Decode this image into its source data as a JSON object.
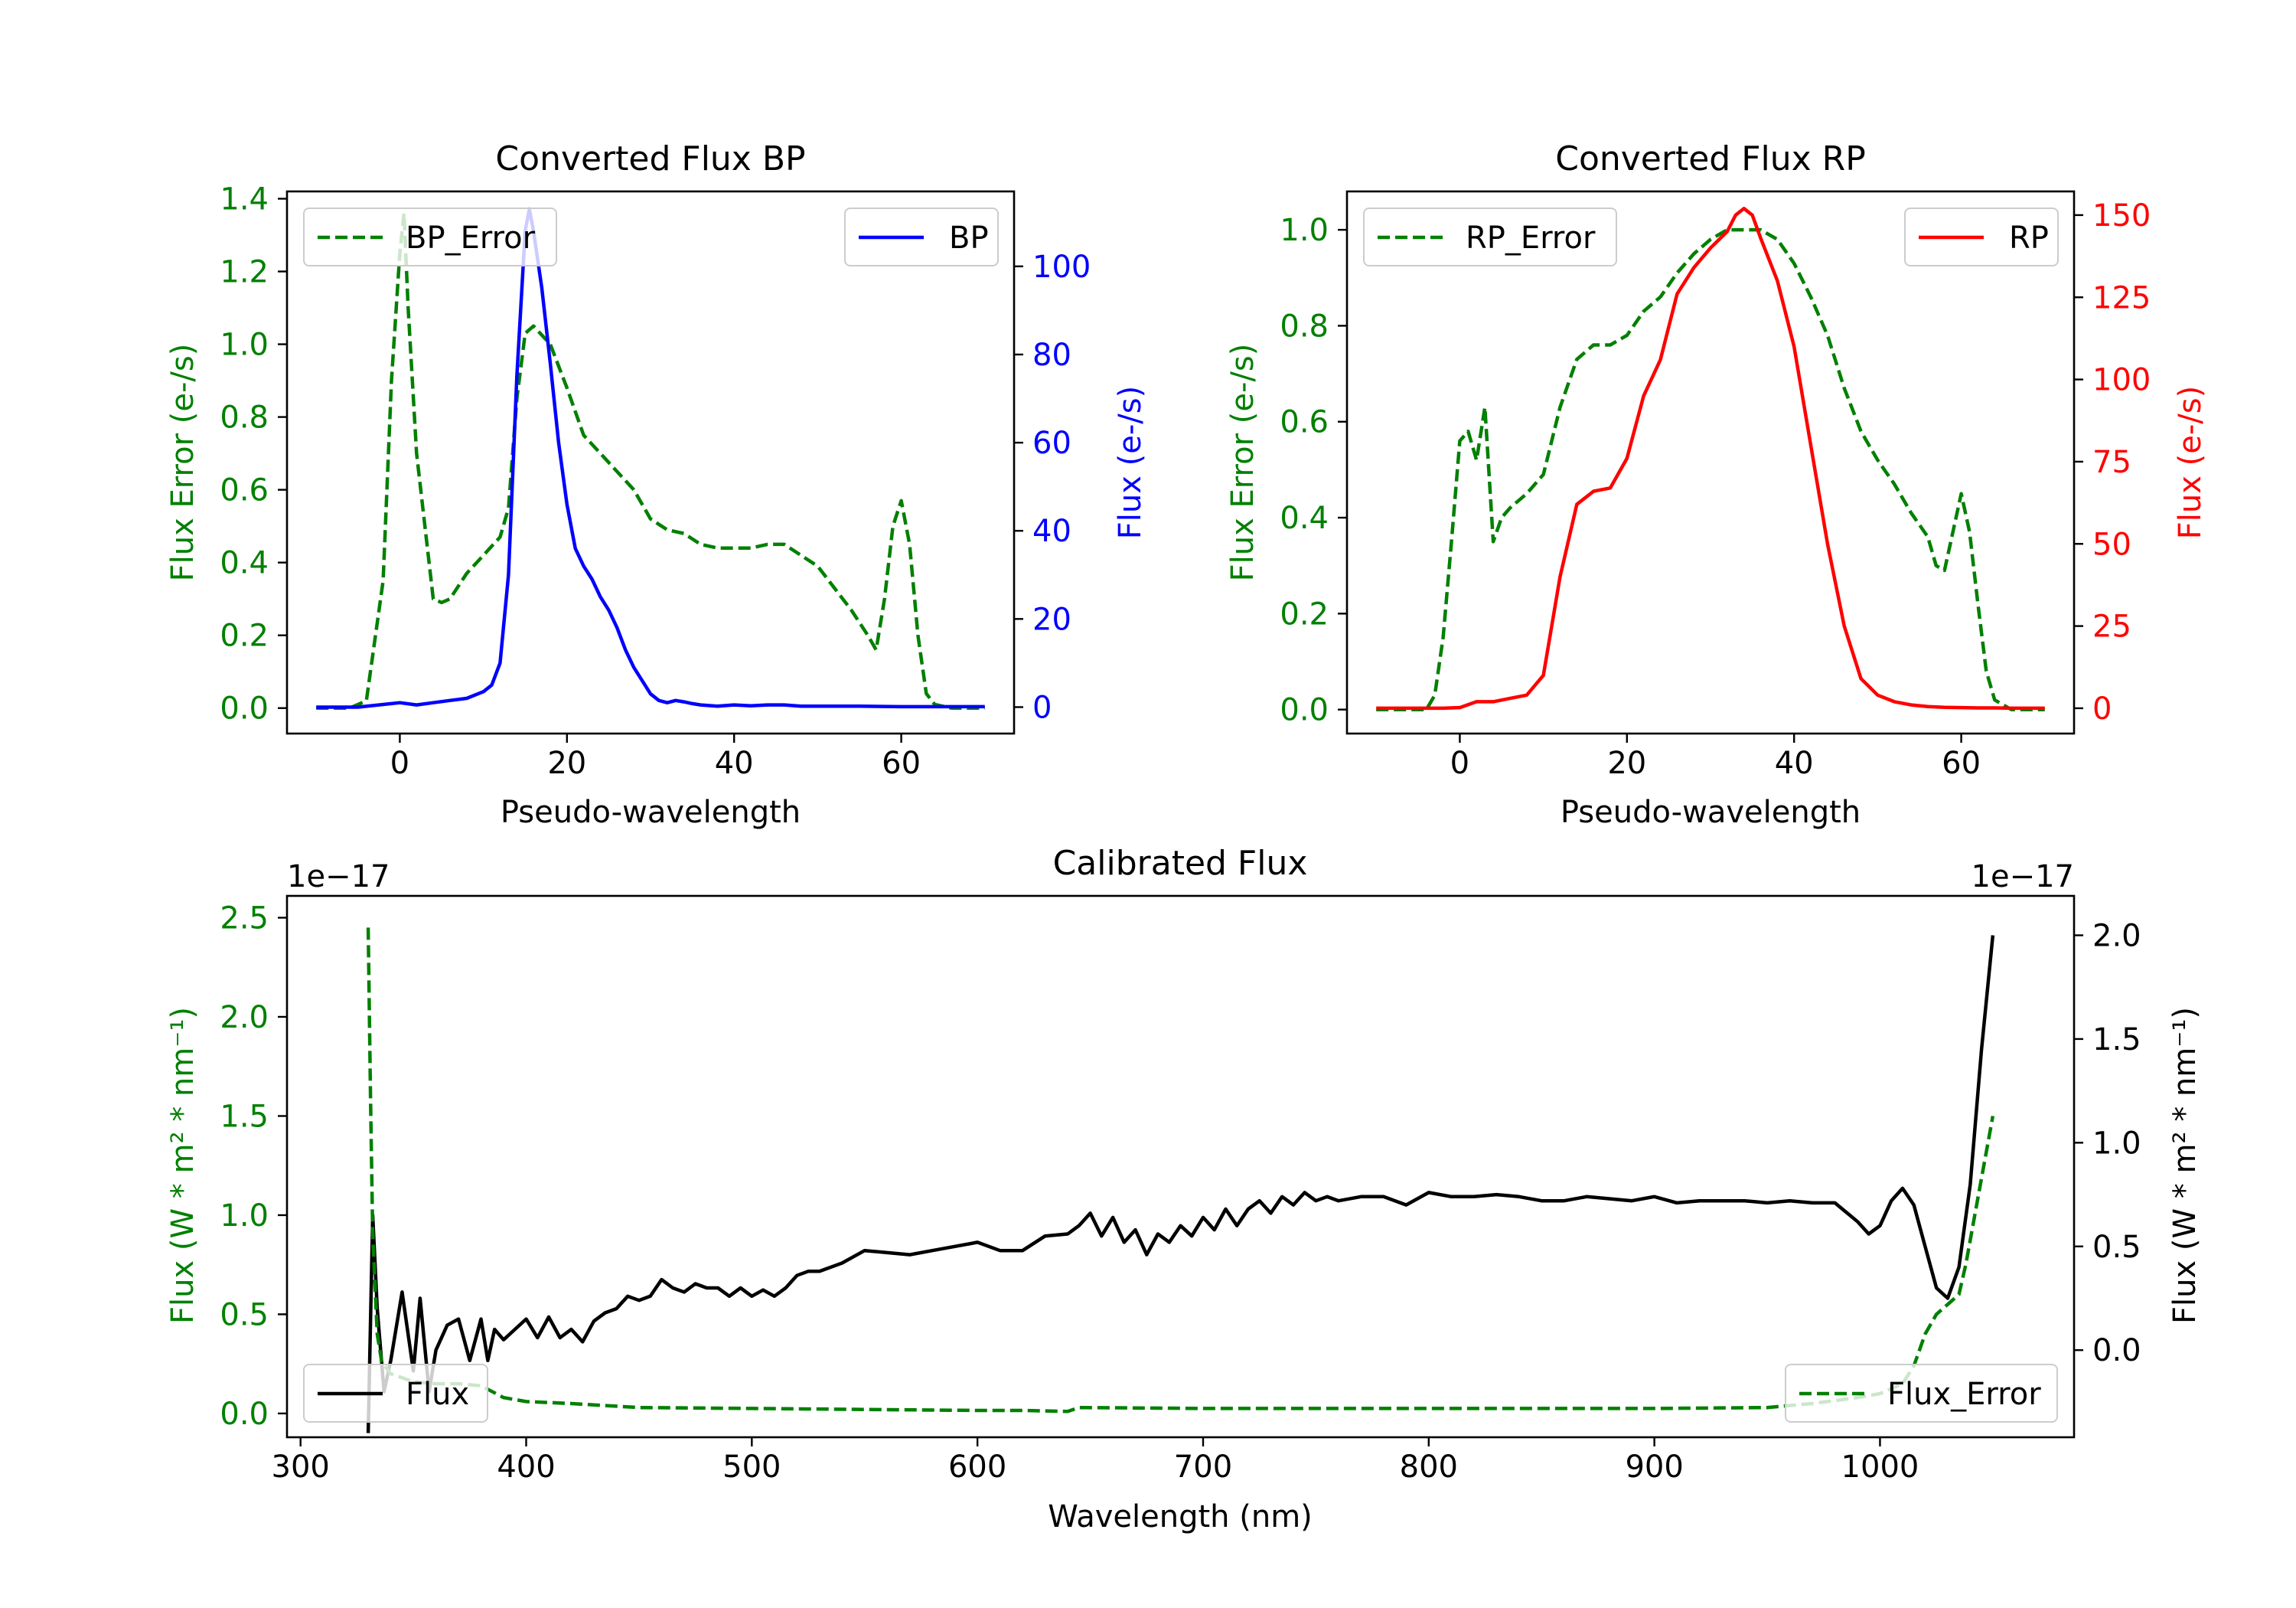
{
  "colors": {
    "green": "#008000",
    "blue": "#0000ff",
    "red": "#ff0000",
    "black": "#000000"
  },
  "chart_data": [
    {
      "type": "line",
      "title": "Converted Flux BP",
      "xlabel": "Pseudo-wavelength",
      "ylabel": "Flux Error (e-/s)",
      "y2label": "Flux (e-/s)",
      "xlim": [
        -13.5,
        73.5
      ],
      "ylim": [
        -0.07,
        1.42
      ],
      "y2lim": [
        -6,
        117
      ],
      "xticks": [
        0,
        20,
        40,
        60
      ],
      "xtick_labels": [
        "0",
        "20",
        "40",
        "60"
      ],
      "yticks": [
        0,
        0.2,
        0.4,
        0.6,
        0.8,
        1.0,
        1.2,
        1.4
      ],
      "ytick_labels": [
        "0.0",
        "0.2",
        "0.4",
        "0.6",
        "0.8",
        "1.0",
        "1.2",
        "1.4"
      ],
      "y2ticks": [
        0,
        20,
        40,
        60,
        80,
        100
      ],
      "y2tick_labels": [
        "0",
        "20",
        "40",
        "60",
        "80",
        "100"
      ],
      "series": [
        {
          "name": "BP_Error",
          "axis": "left",
          "style": "dashed",
          "color": "green",
          "legend": "upper left",
          "x": [
            -10,
            -6,
            -4,
            -2,
            -1,
            0,
            0.5,
            1,
            2,
            3,
            4,
            5,
            6,
            8,
            10,
            12,
            13,
            14,
            15,
            16,
            18,
            20,
            22,
            24,
            26,
            28,
            30,
            32,
            34,
            36,
            38,
            40,
            42,
            44,
            46,
            48,
            50,
            52,
            54,
            56,
            57,
            58,
            59,
            60,
            61,
            62,
            63,
            64,
            66,
            70
          ],
          "y": [
            0,
            0,
            0.02,
            0.35,
            0.9,
            1.25,
            1.36,
            1.1,
            0.7,
            0.5,
            0.3,
            0.29,
            0.3,
            0.37,
            0.42,
            0.47,
            0.55,
            0.85,
            1.03,
            1.05,
            1.0,
            0.88,
            0.75,
            0.7,
            0.65,
            0.6,
            0.52,
            0.49,
            0.48,
            0.45,
            0.44,
            0.44,
            0.44,
            0.45,
            0.45,
            0.42,
            0.39,
            0.33,
            0.27,
            0.2,
            0.16,
            0.3,
            0.5,
            0.57,
            0.45,
            0.2,
            0.04,
            0.01,
            0,
            0
          ]
        },
        {
          "name": "BP",
          "axis": "right",
          "style": "solid",
          "color": "blue",
          "legend": "upper right",
          "x": [
            -10,
            -5,
            0,
            2,
            4,
            6,
            8,
            10,
            11,
            12,
            13,
            14,
            15,
            15.5,
            16,
            17,
            18,
            19,
            20,
            21,
            22,
            23,
            24,
            25,
            26,
            27,
            28,
            29,
            30,
            31,
            32,
            33,
            34,
            35,
            36,
            38,
            40,
            42,
            44,
            46,
            48,
            50,
            55,
            60,
            65,
            70
          ],
          "y": [
            0,
            0,
            1,
            0.5,
            1,
            1.5,
            2,
            3.5,
            5,
            10,
            30,
            75,
            108,
            113,
            108,
            95,
            78,
            60,
            46,
            36,
            32,
            29,
            25,
            22,
            18,
            13,
            9,
            6,
            3,
            1.5,
            1,
            1.5,
            1.2,
            0.8,
            0.5,
            0.2,
            0.5,
            0.3,
            0.5,
            0.5,
            0.2,
            0.2,
            0.2,
            0.1,
            0.1,
            0.1
          ]
        }
      ]
    },
    {
      "type": "line",
      "title": "Converted Flux RP",
      "xlabel": "Pseudo-wavelength",
      "ylabel": "Flux Error (e-/s)",
      "y2label": "Flux (e-/s)",
      "xlim": [
        -13.5,
        73.5
      ],
      "ylim": [
        -0.05,
        1.08
      ],
      "y2lim": [
        -7.7,
        157.2
      ],
      "xticks": [
        0,
        20,
        40,
        60
      ],
      "xtick_labels": [
        "0",
        "20",
        "40",
        "60"
      ],
      "yticks": [
        0,
        0.2,
        0.4,
        0.6,
        0.8,
        1.0
      ],
      "ytick_labels": [
        "0.0",
        "0.2",
        "0.4",
        "0.6",
        "0.8",
        "1.0"
      ],
      "y2ticks": [
        0,
        25,
        50,
        75,
        100,
        125,
        150
      ],
      "y2tick_labels": [
        "0",
        "25",
        "50",
        "75",
        "100",
        "125",
        "150"
      ],
      "series": [
        {
          "name": "RP_Error",
          "axis": "left",
          "style": "dashed",
          "color": "green",
          "legend": "upper left",
          "x": [
            -10,
            -4,
            -3,
            -2,
            -1,
            0,
            1,
            2,
            3,
            4,
            5,
            6,
            8,
            10,
            12,
            14,
            16,
            18,
            20,
            22,
            24,
            26,
            28,
            30,
            32,
            34,
            36,
            38,
            40,
            42,
            44,
            46,
            48,
            50,
            52,
            54,
            56,
            57,
            58,
            59,
            60,
            61,
            62,
            63,
            64,
            66,
            70
          ],
          "y": [
            0,
            0,
            0.03,
            0.15,
            0.35,
            0.56,
            0.58,
            0.52,
            0.63,
            0.35,
            0.4,
            0.42,
            0.45,
            0.49,
            0.63,
            0.73,
            0.76,
            0.76,
            0.78,
            0.83,
            0.86,
            0.91,
            0.95,
            0.98,
            1.0,
            1.0,
            1.0,
            0.98,
            0.93,
            0.86,
            0.78,
            0.67,
            0.58,
            0.52,
            0.47,
            0.41,
            0.36,
            0.3,
            0.29,
            0.37,
            0.45,
            0.37,
            0.22,
            0.08,
            0.02,
            0,
            0
          ]
        },
        {
          "name": "RP",
          "axis": "right",
          "style": "solid",
          "color": "red",
          "legend": "upper right",
          "x": [
            -10,
            -4,
            -2,
            0,
            2,
            4,
            6,
            8,
            10,
            12,
            14,
            16,
            18,
            20,
            22,
            24,
            26,
            28,
            30,
            32,
            33,
            34,
            35,
            36,
            38,
            40,
            42,
            44,
            46,
            48,
            50,
            52,
            54,
            56,
            58,
            60,
            62,
            64,
            66,
            70
          ],
          "y": [
            0,
            0,
            0,
            0.2,
            2,
            2,
            3,
            4,
            10,
            40,
            62,
            66,
            67,
            76,
            95,
            106,
            126,
            134,
            140,
            145,
            150,
            152,
            150,
            143,
            130,
            110,
            80,
            50,
            25,
            9,
            4,
            2,
            1,
            0.5,
            0.3,
            0.2,
            0.1,
            0.1,
            0,
            0
          ]
        }
      ]
    },
    {
      "type": "line",
      "title": "Calibrated Flux",
      "xlabel": "Wavelength (nm)",
      "ylabel": "Flux (W * m² * nm⁻¹)",
      "y2label": "Flux (W * m² * nm⁻¹)",
      "offset_left": "1e−17",
      "offset_right": "1e−17",
      "xlim": [
        294,
        1086
      ],
      "ylim": [
        -0.12,
        2.61
      ],
      "y2lim": [
        -0.42,
        2.19
      ],
      "xticks": [
        300,
        400,
        500,
        600,
        700,
        800,
        900,
        1000
      ],
      "xtick_labels": [
        "300",
        "400",
        "500",
        "600",
        "700",
        "800",
        "900",
        "1000"
      ],
      "yticks": [
        0,
        0.5,
        1.0,
        1.5,
        2.0,
        2.5
      ],
      "ytick_labels": [
        "0.0",
        "0.5",
        "1.0",
        "1.5",
        "2.0",
        "2.5"
      ],
      "y2ticks": [
        0,
        0.5,
        1.0,
        1.5,
        2.0
      ],
      "y2tick_labels": [
        "0.0",
        "0.5",
        "1.0",
        "1.5",
        "2.0"
      ],
      "series": [
        {
          "name": "Flux",
          "axis": "right",
          "style": "solid",
          "color": "black",
          "legend": "lower left",
          "x": [
            330,
            332,
            334,
            337,
            340,
            345,
            350,
            353,
            357,
            360,
            365,
            370,
            375,
            380,
            383,
            386,
            390,
            395,
            400,
            405,
            410,
            415,
            420,
            425,
            430,
            435,
            440,
            445,
            450,
            455,
            460,
            465,
            470,
            475,
            480,
            485,
            490,
            495,
            500,
            505,
            510,
            515,
            520,
            525,
            530,
            540,
            550,
            560,
            570,
            580,
            590,
            600,
            610,
            620,
            630,
            640,
            645,
            650,
            655,
            660,
            665,
            670,
            675,
            680,
            685,
            690,
            695,
            700,
            705,
            710,
            715,
            720,
            725,
            730,
            735,
            740,
            745,
            750,
            755,
            760,
            770,
            780,
            790,
            800,
            810,
            820,
            830,
            840,
            850,
            860,
            870,
            880,
            890,
            900,
            910,
            920,
            930,
            940,
            950,
            960,
            970,
            980,
            990,
            995,
            1000,
            1005,
            1010,
            1015,
            1020,
            1025,
            1030,
            1035,
            1040,
            1045,
            1050
          ],
          "y": [
            -0.4,
            0.65,
            0.2,
            -0.2,
            -0.05,
            0.28,
            -0.1,
            0.25,
            -0.2,
            0.0,
            0.12,
            0.15,
            -0.05,
            0.15,
            -0.05,
            0.1,
            0.05,
            0.1,
            0.15,
            0.06,
            0.16,
            0.06,
            0.1,
            0.04,
            0.14,
            0.18,
            0.2,
            0.26,
            0.24,
            0.26,
            0.34,
            0.3,
            0.28,
            0.32,
            0.3,
            0.3,
            0.26,
            0.3,
            0.26,
            0.29,
            0.26,
            0.3,
            0.36,
            0.38,
            0.38,
            0.42,
            0.48,
            0.47,
            0.46,
            0.48,
            0.5,
            0.52,
            0.48,
            0.48,
            0.55,
            0.56,
            0.6,
            0.66,
            0.55,
            0.64,
            0.52,
            0.58,
            0.46,
            0.56,
            0.52,
            0.6,
            0.55,
            0.64,
            0.58,
            0.68,
            0.6,
            0.68,
            0.72,
            0.66,
            0.74,
            0.7,
            0.76,
            0.72,
            0.74,
            0.72,
            0.74,
            0.74,
            0.7,
            0.76,
            0.74,
            0.74,
            0.75,
            0.74,
            0.72,
            0.72,
            0.74,
            0.73,
            0.72,
            0.74,
            0.71,
            0.72,
            0.72,
            0.72,
            0.71,
            0.72,
            0.71,
            0.71,
            0.62,
            0.56,
            0.6,
            0.72,
            0.78,
            0.7,
            0.5,
            0.3,
            0.25,
            0.4,
            0.8,
            1.45,
            2.0
          ]
        },
        {
          "name": "Flux_Error",
          "axis": "left",
          "style": "dashed",
          "color": "green",
          "legend": "lower right",
          "x": [
            330,
            331,
            332,
            334,
            336,
            340,
            350,
            360,
            370,
            380,
            390,
            400,
            420,
            450,
            500,
            550,
            600,
            620,
            640,
            645,
            700,
            800,
            900,
            950,
            970,
            990,
            1000,
            1010,
            1015,
            1020,
            1025,
            1030,
            1035,
            1038,
            1042,
            1046,
            1050
          ],
          "y": [
            2.45,
            1.6,
            0.9,
            0.4,
            0.26,
            0.2,
            0.16,
            0.15,
            0.15,
            0.14,
            0.08,
            0.06,
            0.05,
            0.03,
            0.025,
            0.02,
            0.015,
            0.015,
            0.01,
            0.03,
            0.025,
            0.025,
            0.025,
            0.03,
            0.05,
            0.08,
            0.1,
            0.15,
            0.24,
            0.4,
            0.5,
            0.55,
            0.6,
            0.75,
            1.0,
            1.25,
            1.5
          ]
        }
      ]
    }
  ]
}
